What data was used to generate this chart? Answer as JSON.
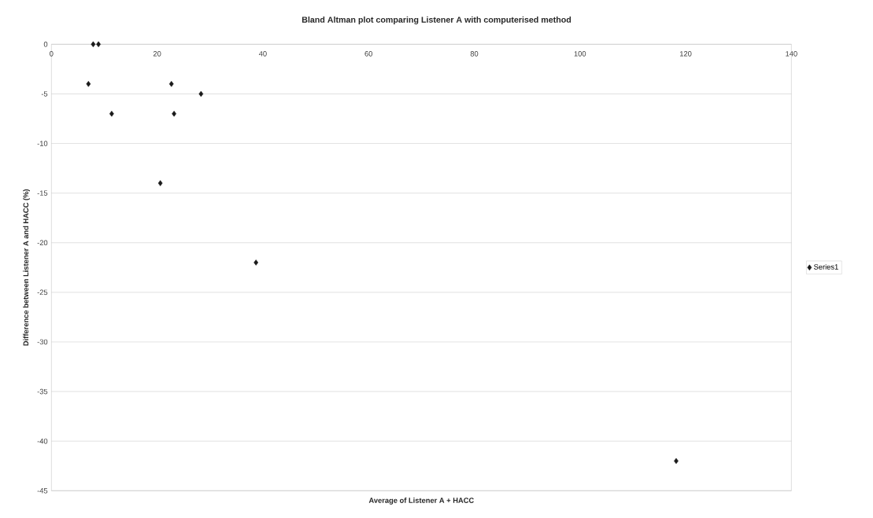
{
  "chart_data": {
    "type": "scatter",
    "title": "Bland Altman plot comparing Listener A with computerised method",
    "xlabel": "Average of Listener A + HACC",
    "ylabel": "Difference between Listener A and HACC (%)",
    "x": [
      7.9,
      8.9,
      7,
      11.4,
      22.7,
      23.2,
      28.3,
      20.6,
      38.7,
      118.2
    ],
    "series": [
      {
        "name": "Series1",
        "color": "#1a1a1a",
        "values": [
          0,
          0,
          -4,
          -7,
          -4,
          -7,
          -5,
          -14,
          -22,
          -42
        ]
      }
    ],
    "xlim": [
      0,
      140
    ],
    "xticks": [
      0,
      20,
      40,
      60,
      80,
      100,
      120,
      140
    ],
    "ylim": [
      -45,
      0
    ],
    "yticks": [
      -45,
      -40,
      -35,
      -30,
      -25,
      -20,
      -15,
      -10,
      -5,
      0
    ],
    "grid": "y",
    "legend": "right",
    "marker": "diamond"
  }
}
